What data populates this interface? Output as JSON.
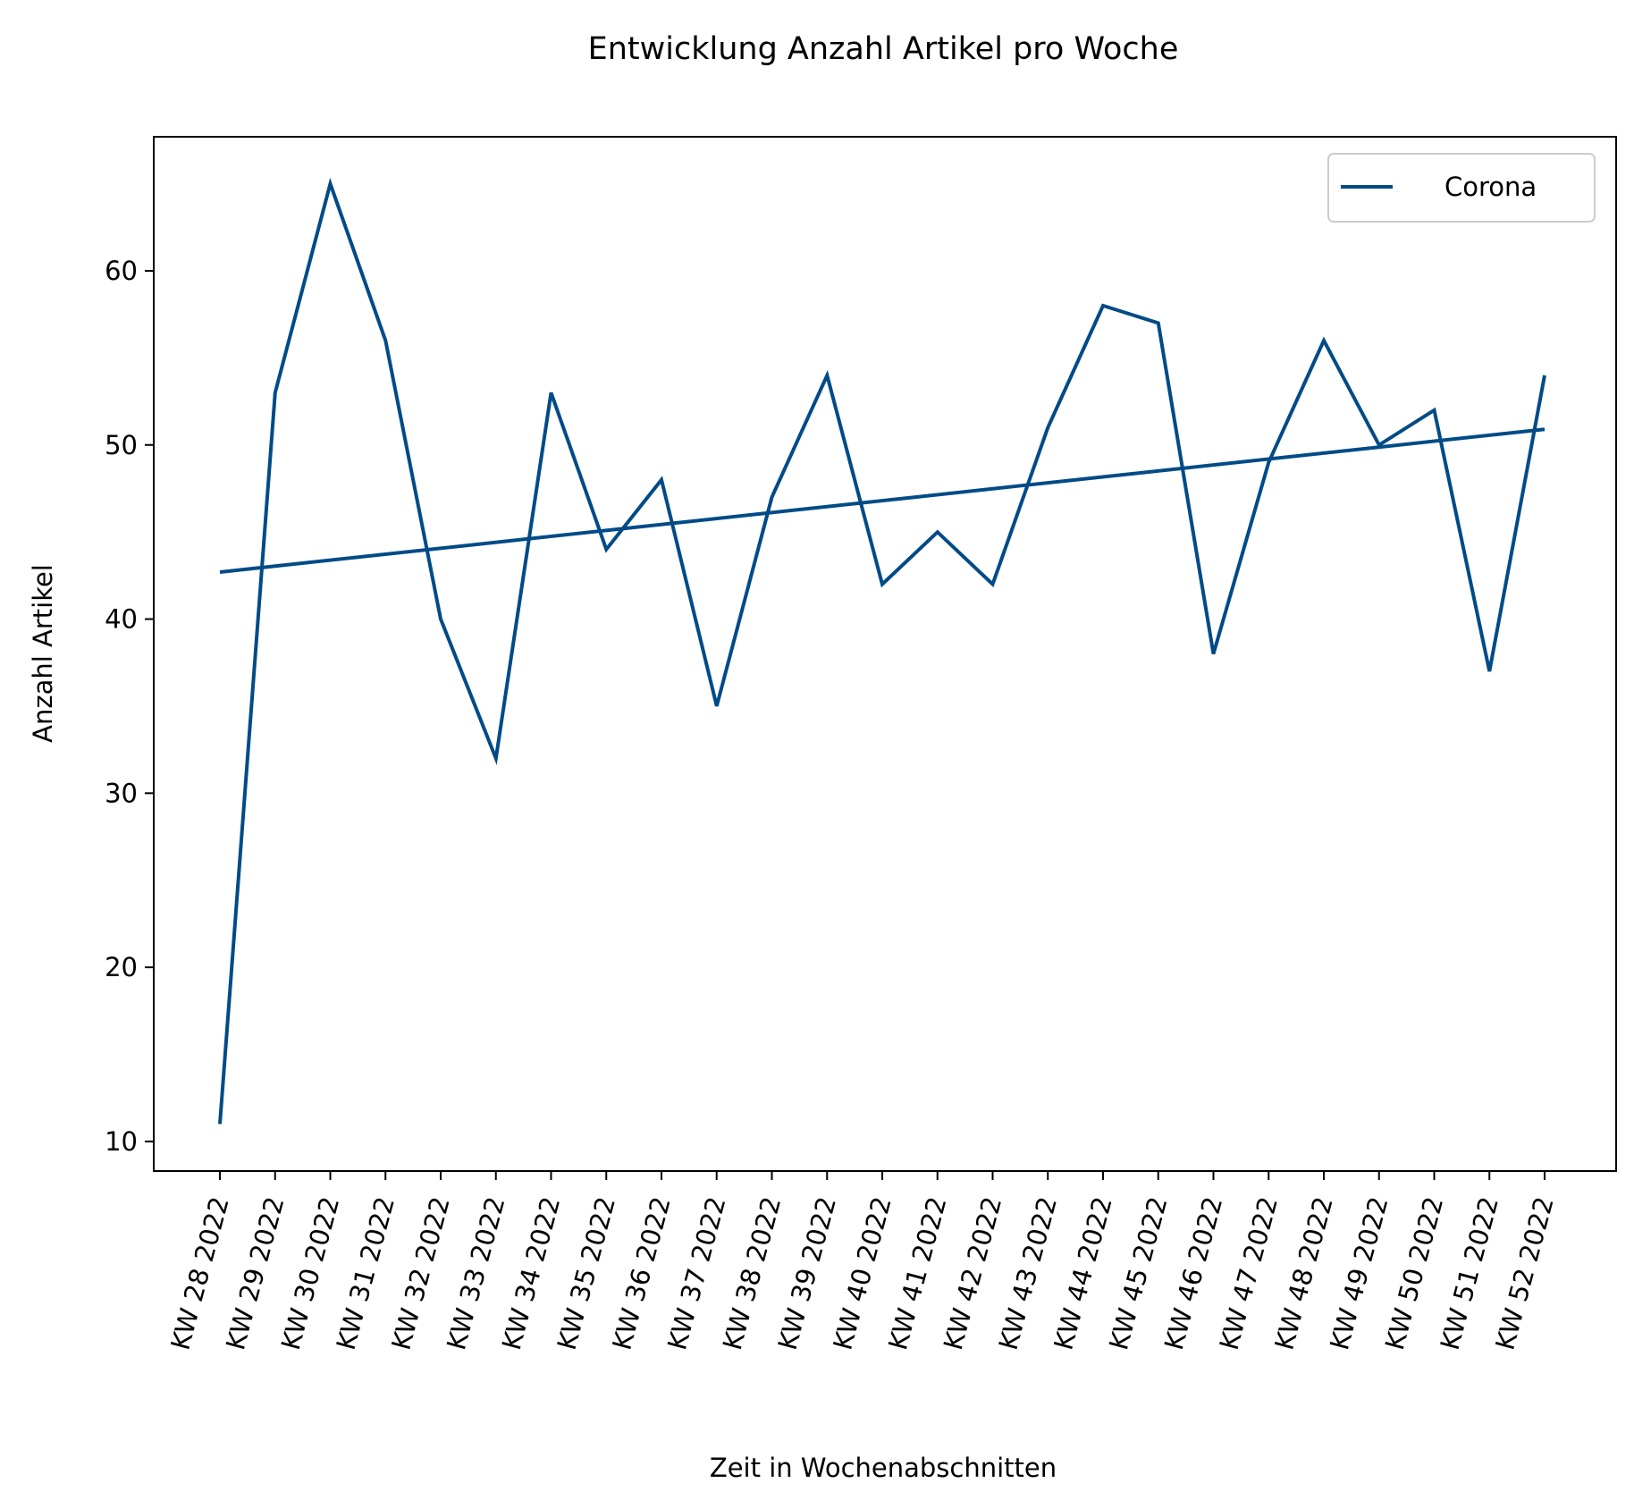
{
  "chart_data": {
    "type": "line",
    "title": "Entwicklung Anzahl Artikel pro Woche",
    "xlabel": "Zeit in Wochenabschnitten",
    "ylabel": "Anzahl Artikel",
    "categories": [
      "KW 28 2022",
      "KW 29 2022",
      "KW 30 2022",
      "KW 31 2022",
      "KW 32 2022",
      "KW 33 2022",
      "KW 34 2022",
      "KW 35 2022",
      "KW 36 2022",
      "KW 37 2022",
      "KW 38 2022",
      "KW 39 2022",
      "KW 40 2022",
      "KW 41 2022",
      "KW 42 2022",
      "KW 43 2022",
      "KW 44 2022",
      "KW 45 2022",
      "KW 46 2022",
      "KW 47 2022",
      "KW 48 2022",
      "KW 49 2022",
      "KW 50 2022",
      "KW 51 2022",
      "KW 52 2022"
    ],
    "series": [
      {
        "name": "Corona",
        "color": "#004b87",
        "values": [
          11,
          53,
          65,
          56,
          40,
          32,
          53,
          44,
          48,
          35,
          47,
          54,
          42,
          45,
          42,
          51,
          58,
          57,
          38,
          49,
          56,
          50,
          52,
          37,
          54
        ]
      }
    ],
    "trend": {
      "color": "#004b87",
      "start": 42.7,
      "end": 50.9
    },
    "yticks": [
      10,
      20,
      30,
      40,
      50,
      60
    ],
    "ylim": [
      8.3,
      67.7
    ],
    "legend": "top-right",
    "grid": false
  }
}
